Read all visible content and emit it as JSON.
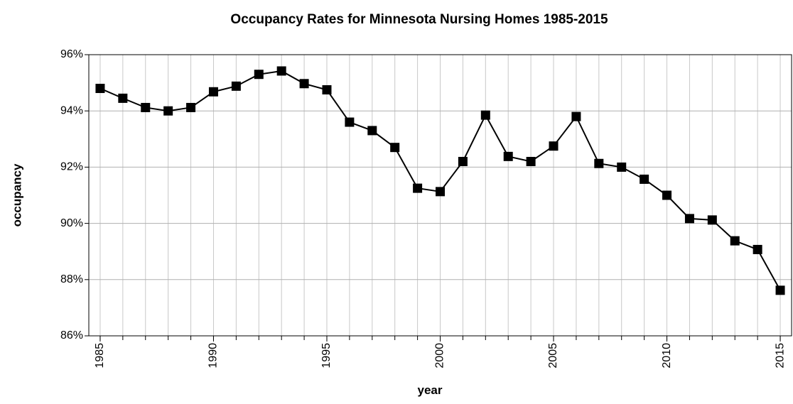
{
  "chart_data": {
    "type": "line",
    "title": "Occupancy Rates for Minnesota Nursing Homes 1985-2015",
    "xlabel": "year",
    "ylabel": "occupancy",
    "x": [
      1985,
      1986,
      1987,
      1988,
      1989,
      1990,
      1991,
      1992,
      1993,
      1994,
      1995,
      1996,
      1997,
      1998,
      1999,
      2000,
      2001,
      2002,
      2003,
      2004,
      2005,
      2006,
      2007,
      2008,
      2009,
      2010,
      2011,
      2012,
      2013,
      2014,
      2015
    ],
    "series": [
      {
        "name": "occupancy",
        "color": "#000000",
        "values": [
          94.8,
          94.45,
          94.12,
          94.0,
          94.12,
          94.68,
          94.88,
          95.3,
          95.42,
          94.97,
          94.75,
          93.6,
          93.3,
          92.7,
          91.25,
          91.13,
          92.2,
          93.85,
          92.38,
          92.2,
          92.75,
          93.8,
          92.13,
          92.0,
          91.57,
          91.0,
          90.17,
          90.12,
          89.38,
          89.07,
          87.62
        ]
      }
    ],
    "xlim": [
      1984.5,
      2015.5
    ],
    "xticks": [
      1985,
      1990,
      1995,
      2000,
      2005,
      2010,
      2015
    ],
    "ylim": [
      86,
      96
    ],
    "yticks": [
      {
        "value": 86,
        "label": "86%"
      },
      {
        "value": 88,
        "label": "88%"
      },
      {
        "value": 90,
        "label": "90%"
      },
      {
        "value": 92,
        "label": "92%"
      },
      {
        "value": 94,
        "label": "94%"
      },
      {
        "value": 96,
        "label": "96%"
      }
    ],
    "grid": true
  }
}
